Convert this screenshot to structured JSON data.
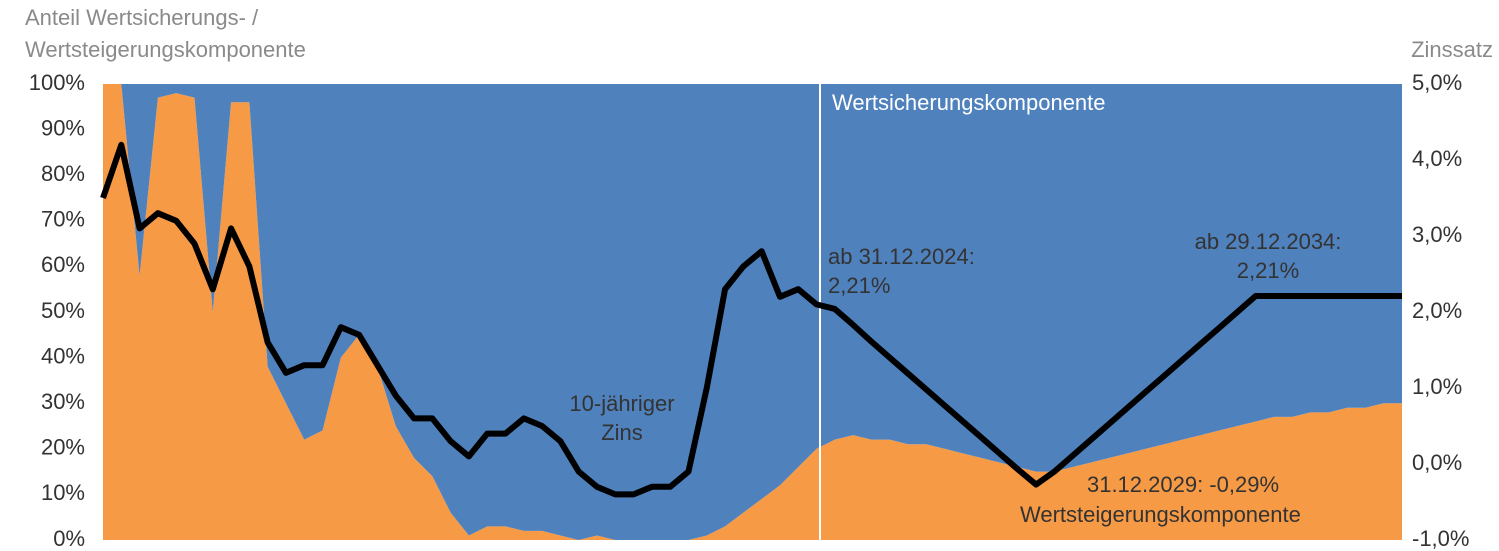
{
  "chart_data": {
    "type": "stacked_area_line",
    "y_label": [
      "Anteil Wertsicherungs- /",
      "Wertsteigerungskomponente"
    ],
    "y2_label": "Zinssatz",
    "categories": [
      null,
      null,
      null,
      null,
      null,
      null,
      null,
      null,
      null,
      null,
      null,
      null,
      null,
      null,
      null,
      null,
      null,
      null,
      null,
      null,
      null,
      null,
      null,
      null,
      null,
      null,
      null,
      null,
      null,
      null,
      null,
      null,
      null,
      null,
      null,
      null,
      null,
      null,
      null,
      null,
      null,
      null,
      null,
      null,
      null,
      null,
      null,
      null,
      null,
      null,
      null,
      null,
      null,
      null,
      null,
      null,
      null,
      null,
      null,
      null,
      null,
      null,
      null,
      null,
      null,
      null,
      null,
      null,
      null,
      null,
      null,
      null
    ],
    "ylim": [
      0,
      100
    ],
    "yticks": [
      {
        "value": 0,
        "label": "0%"
      },
      {
        "value": 10,
        "label": "10%"
      },
      {
        "value": 20,
        "label": "20%"
      },
      {
        "value": 30,
        "label": "30%"
      },
      {
        "value": 40,
        "label": "40%"
      },
      {
        "value": 50,
        "label": "50%"
      },
      {
        "value": 60,
        "label": "60%"
      },
      {
        "value": 70,
        "label": "70%"
      },
      {
        "value": 80,
        "label": "80%"
      },
      {
        "value": 90,
        "label": "90%"
      },
      {
        "value": 100,
        "label": "100%"
      }
    ],
    "y2lim": [
      -1,
      5
    ],
    "y2ticks": [
      {
        "value": -1,
        "label": "-1,0%"
      },
      {
        "value": 0,
        "label": "0,0%"
      },
      {
        "value": 1,
        "label": "1,0%"
      },
      {
        "value": 2,
        "label": "2,0%"
      },
      {
        "value": 3,
        "label": "3,0%"
      },
      {
        "value": 4,
        "label": "4,0%"
      },
      {
        "value": 5,
        "label": "5,0%"
      }
    ],
    "series": [
      {
        "name": "Wertsteigerungskomponente",
        "color": "#f79a45",
        "values": [
          100,
          100,
          58,
          97,
          98,
          97,
          50,
          96,
          96,
          38,
          30,
          22,
          24,
          40,
          45,
          38,
          25,
          18,
          14,
          6,
          1,
          3,
          3,
          2,
          2,
          1,
          0,
          1,
          0,
          0,
          0,
          0,
          0,
          1,
          3,
          6,
          9,
          12,
          16,
          20,
          22,
          23,
          22,
          22,
          21,
          21,
          20,
          19,
          18,
          17,
          16,
          15,
          15,
          16,
          17,
          18,
          19,
          20,
          21,
          22,
          23,
          24,
          25,
          26,
          27,
          27,
          28,
          28,
          29,
          29,
          30,
          30
        ]
      },
      {
        "name": "Wertsicherungskomponente",
        "color": "#4f81bd",
        "values": [
          0,
          0,
          42,
          3,
          2,
          3,
          50,
          4,
          4,
          62,
          70,
          78,
          76,
          60,
          55,
          62,
          75,
          82,
          86,
          94,
          99,
          97,
          97,
          98,
          98,
          99,
          100,
          99,
          100,
          100,
          100,
          100,
          100,
          99,
          97,
          94,
          91,
          88,
          84,
          80,
          78,
          77,
          78,
          78,
          79,
          79,
          80,
          81,
          82,
          83,
          84,
          85,
          85,
          84,
          83,
          82,
          81,
          80,
          79,
          78,
          77,
          76,
          75,
          74,
          73,
          73,
          72,
          72,
          71,
          71,
          70,
          70
        ]
      },
      {
        "name": "10-jähriger Zins",
        "color": "#000000",
        "axis": "y2",
        "values": [
          3.5,
          4.2,
          3.1,
          3.3,
          3.2,
          2.9,
          2.3,
          3.1,
          2.6,
          1.6,
          1.2,
          1.3,
          1.3,
          1.8,
          1.7,
          1.3,
          0.9,
          0.6,
          0.6,
          0.3,
          0.1,
          0.4,
          0.4,
          0.6,
          0.5,
          0.3,
          -0.1,
          -0.3,
          -0.4,
          -0.4,
          -0.3,
          -0.3,
          -0.1,
          1.0,
          2.3,
          2.6,
          2.8,
          2.2,
          2.3,
          2.1,
          2.04,
          1.83,
          1.61,
          1.4,
          1.19,
          0.98,
          0.77,
          0.56,
          0.35,
          0.14,
          -0.07,
          -0.27,
          -0.1,
          0.11,
          0.32,
          0.53,
          0.74,
          0.95,
          1.16,
          1.37,
          1.58,
          1.79,
          2.0,
          2.21,
          2.21,
          2.21,
          2.21,
          2.21,
          2.21,
          2.21,
          2.21,
          2.21
        ]
      }
    ],
    "annotations": [
      {
        "text": [
          "ab 31.12.2024:",
          "2,21%"
        ]
      },
      {
        "text": [
          "ab 29.12.2034:",
          "2,21%"
        ]
      },
      {
        "text": [
          "31.12.2029: -0,29%"
        ]
      }
    ]
  }
}
